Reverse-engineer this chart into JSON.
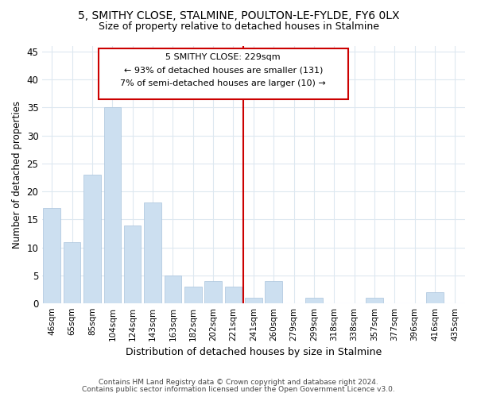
{
  "title1": "5, SMITHY CLOSE, STALMINE, POULTON-LE-FYLDE, FY6 0LX",
  "title2": "Size of property relative to detached houses in Stalmine",
  "xlabel": "Distribution of detached houses by size in Stalmine",
  "ylabel": "Number of detached properties",
  "categories": [
    "46sqm",
    "65sqm",
    "85sqm",
    "104sqm",
    "124sqm",
    "143sqm",
    "163sqm",
    "182sqm",
    "202sqm",
    "221sqm",
    "241sqm",
    "260sqm",
    "279sqm",
    "299sqm",
    "318sqm",
    "338sqm",
    "357sqm",
    "377sqm",
    "396sqm",
    "416sqm",
    "435sqm"
  ],
  "values": [
    17,
    11,
    23,
    35,
    14,
    18,
    5,
    3,
    4,
    3,
    1,
    4,
    0,
    1,
    0,
    0,
    1,
    0,
    0,
    2,
    0
  ],
  "bar_color": "#ccdff0",
  "bar_edge_color": "#aac4dd",
  "vline_color": "#cc0000",
  "vline_bin_index": 9.5,
  "annotation_line1": "5 SMITHY CLOSE: 229sqm",
  "annotation_line2": "← 93% of detached houses are smaller (131)",
  "annotation_line3": "7% of semi-detached houses are larger (10) →",
  "ylim": [
    0,
    46
  ],
  "yticks": [
    0,
    5,
    10,
    15,
    20,
    25,
    30,
    35,
    40,
    45
  ],
  "footer1": "Contains HM Land Registry data © Crown copyright and database right 2024.",
  "footer2": "Contains public sector information licensed under the Open Government Licence v3.0.",
  "background_color": "#ffffff",
  "plot_background": "#ffffff",
  "grid_color": "#dde8f0"
}
